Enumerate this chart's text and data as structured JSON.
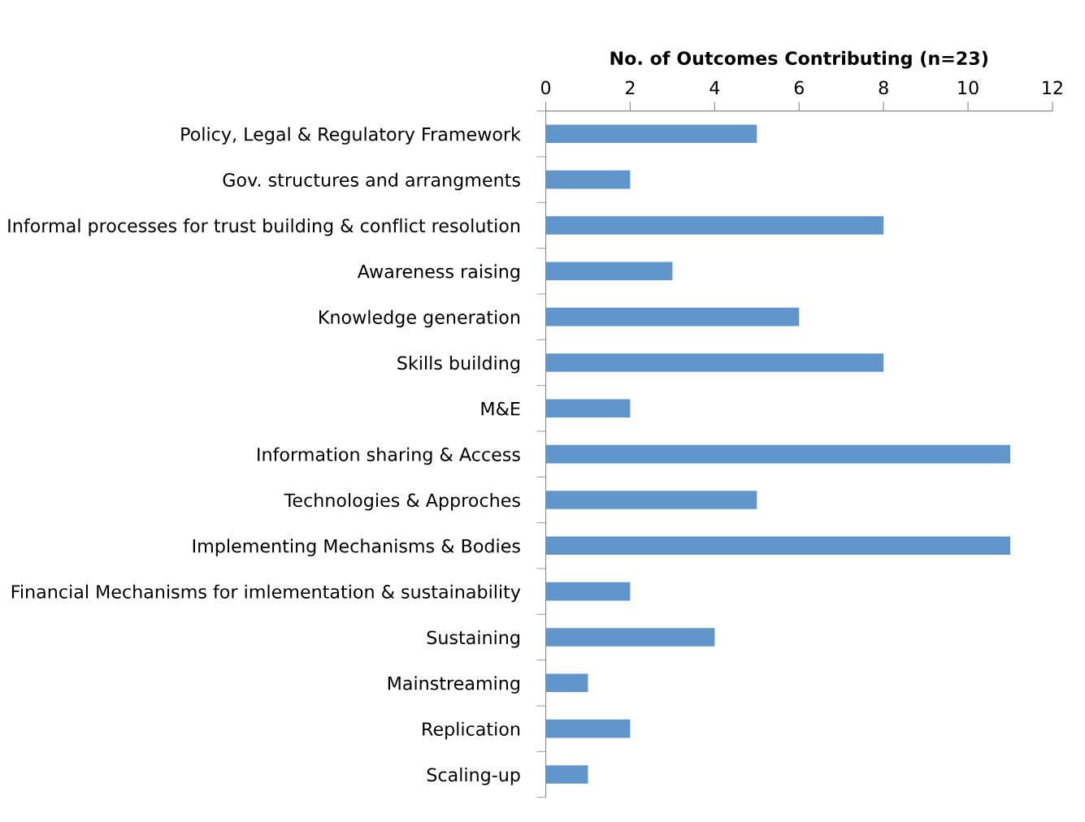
{
  "chart_data": {
    "type": "bar",
    "orientation": "horizontal",
    "xlabel": "No. of Outcomes Contributing (n=23)",
    "categories": [
      "Policy, Legal & Regulatory Framework",
      "Gov. structures and arrangments",
      "Informal processes for trust building & conflict resolution",
      "Awareness raising",
      "Knowledge generation",
      "Skills building",
      "M&E",
      "Information sharing & Access",
      "Technologies & Approches",
      "Implementing Mechanisms & Bodies",
      "Financial Mechanisms for imlementation & sustainability",
      "Sustaining",
      "Mainstreaming",
      "Replication",
      "Scaling-up"
    ],
    "values": [
      5,
      2,
      8,
      3,
      6,
      8,
      2,
      11,
      5,
      11,
      2,
      4,
      1,
      2,
      1
    ],
    "color": "#6096cc",
    "xlim": [
      0,
      12
    ],
    "xticks": [
      0,
      2,
      4,
      6,
      8,
      10,
      12
    ],
    "grid": false,
    "legend": false
  }
}
